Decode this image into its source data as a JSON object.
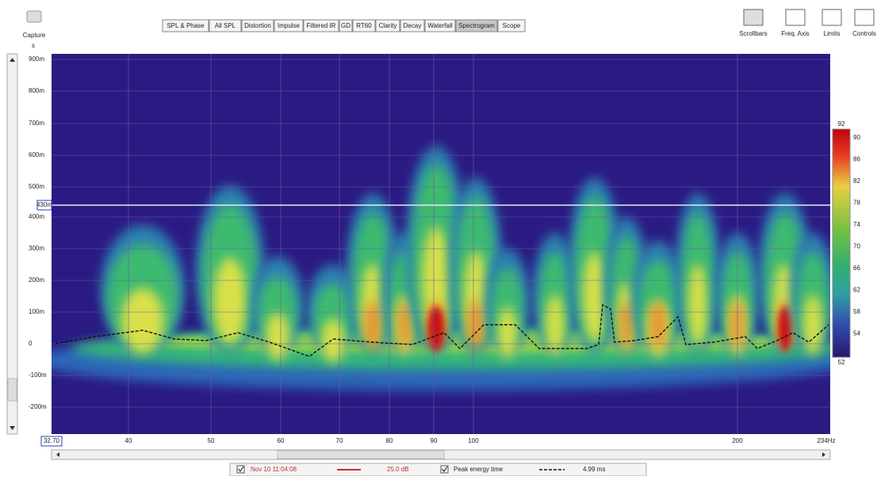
{
  "toolbar": {
    "capture": "Capture",
    "tabs": [
      "SPL & Phase",
      "All SPL",
      "Distortion",
      "Impulse",
      "Filtered IR",
      "GD",
      "RT60",
      "Clarity",
      "Decay",
      "Waterfall",
      "Spectrogram",
      "Scope"
    ],
    "right_buttons": [
      "Scrollbars",
      "Freq. Axis",
      "Limits",
      "Controls"
    ]
  },
  "plot": {
    "y_unit": "s",
    "y_labels": [
      "900m",
      "800m",
      "700m",
      "600m",
      "500m",
      "400m",
      "300m",
      "200m",
      "100m",
      "0",
      "-100m",
      "-200m"
    ],
    "cursor_label": "430m",
    "x_start": "32.70",
    "x_labels": [
      "40",
      "50",
      "60",
      "70",
      "80",
      "90",
      "100",
      "200"
    ],
    "x_end": "234Hz"
  },
  "colorbar": {
    "top": "92",
    "labels": [
      "90",
      "86",
      "82",
      "78",
      "74",
      "70",
      "66",
      "62",
      "58",
      "54"
    ],
    "bottom": "52"
  },
  "legend": {
    "trace_name": "Nov 10 11:04:08",
    "trace_value": "25.0 dB",
    "peak_name": "Peak energy time",
    "peak_value": "4.99 ms"
  }
}
